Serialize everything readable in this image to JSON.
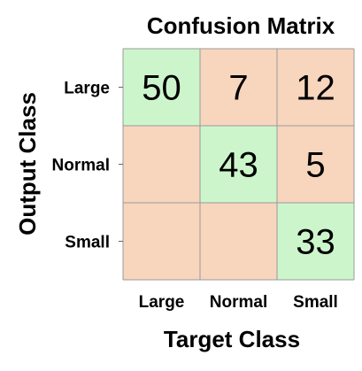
{
  "chart_data": {
    "type": "heatmap",
    "title": "Confusion Matrix",
    "xlabel": "Target Class",
    "ylabel": "Output Class",
    "x_categories": [
      "Large",
      "Normal",
      "Small"
    ],
    "y_categories": [
      "Large",
      "Normal",
      "Small"
    ],
    "values": [
      [
        50,
        7,
        12
      ],
      [
        null,
        43,
        5
      ],
      [
        null,
        null,
        33
      ]
    ],
    "colors": {
      "diagonal": "#ccf5cc",
      "off_diagonal": "#f8d5bd",
      "grid": "#9a9a9a"
    }
  }
}
